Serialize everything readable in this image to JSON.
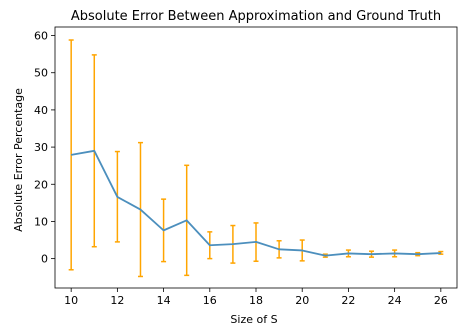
{
  "chart_data": {
    "type": "line",
    "title": "Absolute Error Between Approximation and Ground Truth",
    "xlabel": "Size of S",
    "ylabel": "Absolute Error Percentage",
    "xlim": [
      9.3,
      26.7
    ],
    "ylim": [
      -7.9,
      62.3
    ],
    "xticks": [
      10,
      12,
      14,
      16,
      18,
      20,
      22,
      24,
      26
    ],
    "yticks": [
      0,
      10,
      20,
      30,
      40,
      50,
      60
    ],
    "grid": false,
    "series": [
      {
        "color": "#4c8fbd",
        "errorbar_color": "#ffa500",
        "points": [
          {
            "x": 10,
            "y": 27.9,
            "low": -3.0,
            "high": 58.8
          },
          {
            "x": 11,
            "y": 29.0,
            "low": 3.2,
            "high": 54.8
          },
          {
            "x": 12,
            "y": 16.6,
            "low": 4.5,
            "high": 28.8
          },
          {
            "x": 13,
            "y": 13.2,
            "low": -4.8,
            "high": 31.2
          },
          {
            "x": 14,
            "y": 7.6,
            "low": -0.8,
            "high": 16.0
          },
          {
            "x": 15,
            "y": 10.3,
            "low": -4.5,
            "high": 25.1
          },
          {
            "x": 16,
            "y": 3.6,
            "low": 0.0,
            "high": 7.2
          },
          {
            "x": 17,
            "y": 3.9,
            "low": -1.2,
            "high": 8.9
          },
          {
            "x": 18,
            "y": 4.5,
            "low": -0.7,
            "high": 9.6
          },
          {
            "x": 19,
            "y": 2.5,
            "low": 0.2,
            "high": 4.8
          },
          {
            "x": 20,
            "y": 2.2,
            "low": -0.6,
            "high": 5.0
          },
          {
            "x": 21,
            "y": 0.8,
            "low": 0.4,
            "high": 1.2
          },
          {
            "x": 22,
            "y": 1.4,
            "low": 0.5,
            "high": 2.3
          },
          {
            "x": 23,
            "y": 1.2,
            "low": 0.4,
            "high": 2.0
          },
          {
            "x": 24,
            "y": 1.4,
            "low": 0.5,
            "high": 2.3
          },
          {
            "x": 25,
            "y": 1.2,
            "low": 0.8,
            "high": 1.6
          },
          {
            "x": 26,
            "y": 1.5,
            "low": 1.2,
            "high": 1.9
          }
        ]
      }
    ]
  }
}
